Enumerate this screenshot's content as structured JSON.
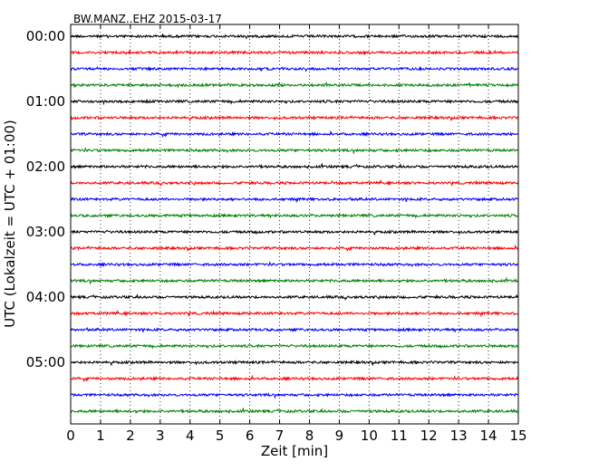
{
  "chart_data": {
    "type": "line",
    "title": "BW.MANZ..EHZ 2015-03-17",
    "xlabel": "Zeit  [min]",
    "ylabel": "UTC (Lokalzeit = UTC + 01:00)",
    "xlim": [
      0,
      15
    ],
    "ylim": [
      0,
      6.125
    ],
    "x_ticks": [
      "0",
      "1",
      "2",
      "3",
      "4",
      "5",
      "6",
      "7",
      "8",
      "9",
      "10",
      "11",
      "12",
      "13",
      "14",
      "15"
    ],
    "y_ticks": [
      {
        "label": "00:00",
        "value": 0
      },
      {
        "label": "01:00",
        "value": 1
      },
      {
        "label": "02:00",
        "value": 2
      },
      {
        "label": "03:00",
        "value": 3
      },
      {
        "label": "04:00",
        "value": 4
      },
      {
        "label": "05:00",
        "value": 5
      }
    ],
    "grid": {
      "x": "dotted"
    },
    "trace_interval_min": 15,
    "trace_colors": [
      "#000000",
      "#ff0000",
      "#0000ff",
      "#008000"
    ],
    "traces": [
      {
        "start": "00:00",
        "color": "#000000"
      },
      {
        "start": "00:15",
        "color": "#ff0000"
      },
      {
        "start": "00:30",
        "color": "#0000ff"
      },
      {
        "start": "00:45",
        "color": "#008000"
      },
      {
        "start": "01:00",
        "color": "#000000"
      },
      {
        "start": "01:15",
        "color": "#ff0000"
      },
      {
        "start": "01:30",
        "color": "#0000ff"
      },
      {
        "start": "01:45",
        "color": "#008000"
      },
      {
        "start": "02:00",
        "color": "#000000"
      },
      {
        "start": "02:15",
        "color": "#ff0000"
      },
      {
        "start": "02:30",
        "color": "#0000ff"
      },
      {
        "start": "02:45",
        "color": "#008000"
      },
      {
        "start": "03:00",
        "color": "#000000"
      },
      {
        "start": "03:15",
        "color": "#ff0000"
      },
      {
        "start": "03:30",
        "color": "#0000ff"
      },
      {
        "start": "03:45",
        "color": "#008000"
      },
      {
        "start": "04:00",
        "color": "#000000"
      },
      {
        "start": "04:15",
        "color": "#ff0000"
      },
      {
        "start": "04:30",
        "color": "#0000ff"
      },
      {
        "start": "04:45",
        "color": "#008000"
      },
      {
        "start": "05:00",
        "color": "#000000"
      },
      {
        "start": "05:15",
        "color": "#ff0000"
      },
      {
        "start": "05:30",
        "color": "#0000ff"
      },
      {
        "start": "05:45",
        "color": "#008000"
      }
    ]
  }
}
